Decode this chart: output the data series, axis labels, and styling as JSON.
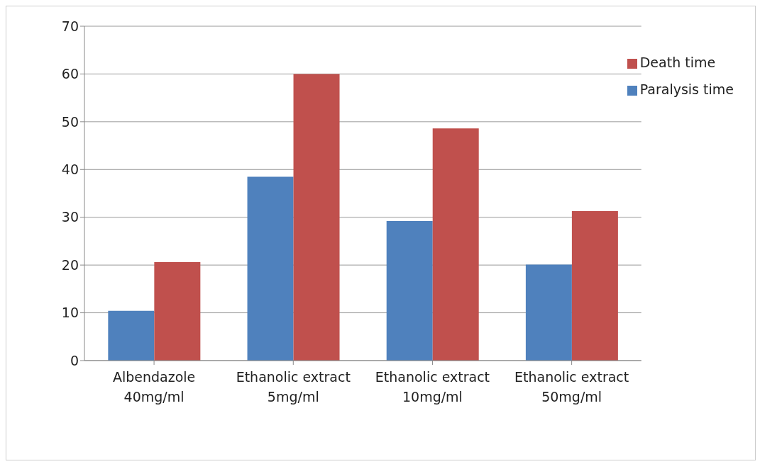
{
  "chart_data": {
    "type": "bar",
    "categories": [
      "Albendazole 40mg/ml",
      "Ethanolic extract 5mg/ml",
      "Ethanolic extract 10mg/ml",
      "Ethanolic extract 50mg/ml"
    ],
    "series": [
      {
        "name": "Paralysis time",
        "color": "#4f81bd",
        "values": [
          10.4,
          38.5,
          29.2,
          20.1
        ]
      },
      {
        "name": "Death time",
        "color": "#c0504d",
        "values": [
          20.6,
          60,
          48.6,
          31.3
        ]
      }
    ],
    "ylim": [
      0,
      70
    ],
    "yticks": [
      0,
      10,
      20,
      30,
      40,
      50,
      60,
      70
    ],
    "grid": "y",
    "legend": "top right"
  }
}
